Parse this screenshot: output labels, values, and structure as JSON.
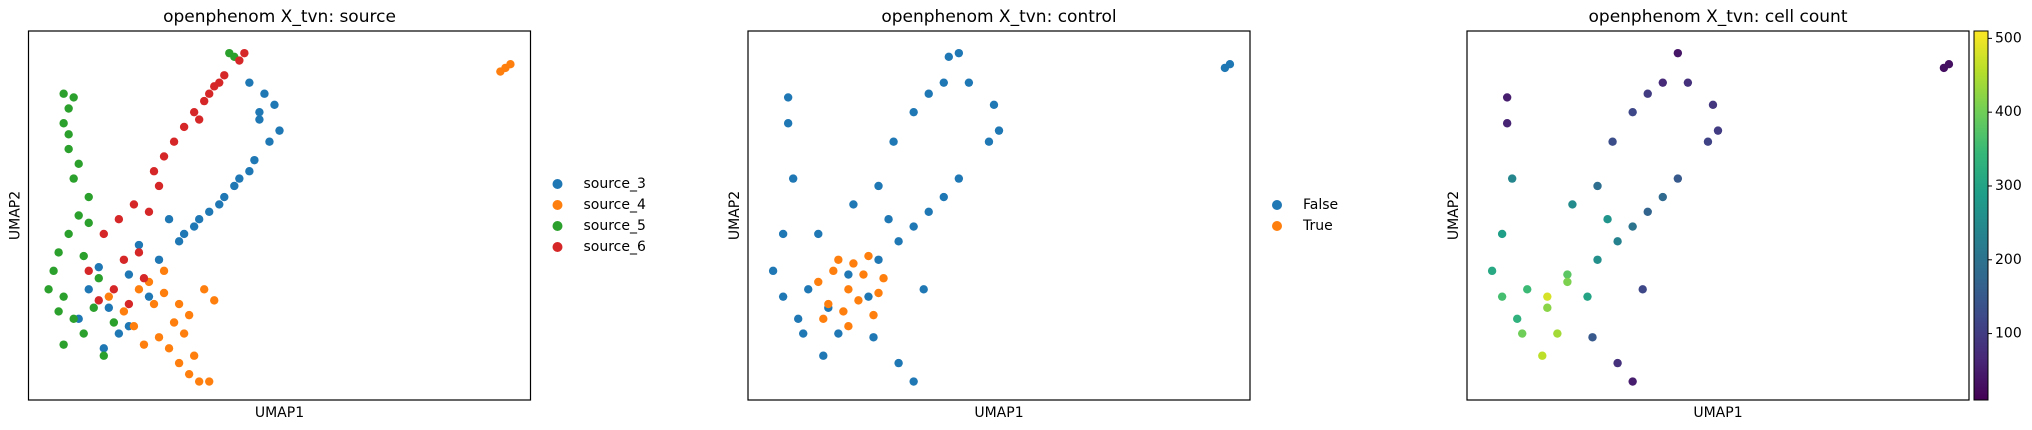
{
  "chart_data": [
    {
      "type": "scatter",
      "title": "openphenom X_tvn: source",
      "xlabel": "UMAP1",
      "ylabel": "UMAP2",
      "xlim": [
        0,
        10
      ],
      "ylim": [
        0,
        10
      ],
      "legend": "right",
      "series": [
        {
          "name": "source_3",
          "color": "#1f77b4",
          "x": [
            1.2,
            1.6,
            2.0,
            2.4,
            1.0,
            1.8,
            2.6,
            2.2,
            1.4,
            3.0,
            3.3,
            3.6,
            3.9,
            4.2,
            4.5,
            4.8,
            4.6,
            4.9,
            5.0,
            4.7,
            4.4,
            4.6,
            2.8,
            2.0,
            1.5,
            3.1,
            3.4,
            3.8,
            4.1,
            4.4
          ],
          "y": [
            3.0,
            2.5,
            3.4,
            2.8,
            2.2,
            1.8,
            3.8,
            4.2,
            3.6,
            4.3,
            4.7,
            5.1,
            5.5,
            6.0,
            6.5,
            7.0,
            7.6,
            8.0,
            7.3,
            8.3,
            8.6,
            7.8,
            4.9,
            2.0,
            1.4,
            4.5,
            4.9,
            5.3,
            5.8,
            6.2
          ]
        },
        {
          "name": "source_4",
          "color": "#ff7f0e",
          "x": [
            2.4,
            2.7,
            3.0,
            3.2,
            2.9,
            3.1,
            2.6,
            2.8,
            3.3,
            3.0,
            2.5,
            2.2,
            1.9,
            2.1,
            3.2,
            3.4,
            3.6,
            3.5,
            3.7,
            9.5,
            9.6,
            9.4,
            1.6,
            2.3,
            2.7
          ],
          "y": [
            3.2,
            2.9,
            2.6,
            2.3,
            2.1,
            1.8,
            1.7,
            1.4,
            1.2,
            1.0,
            2.6,
            3.0,
            2.4,
            2.0,
            0.7,
            0.5,
            0.5,
            3.0,
            2.7,
            9.0,
            9.1,
            8.9,
            2.8,
            1.5,
            3.5
          ]
        },
        {
          "name": "source_5",
          "color": "#2ca02c",
          "x": [
            0.5,
            0.7,
            0.9,
            1.1,
            0.6,
            0.8,
            1.0,
            1.2,
            0.4,
            0.7,
            1.3,
            1.5,
            0.9,
            0.8,
            0.7,
            0.8,
            0.9,
            0.7,
            0.8,
            1.0,
            1.2,
            1.1,
            0.6,
            1.4,
            1.7,
            4.0,
            4.1
          ],
          "y": [
            3.5,
            2.8,
            2.2,
            1.8,
            4.0,
            4.5,
            5.0,
            5.5,
            3.0,
            1.5,
            2.5,
            1.2,
            6.0,
            6.8,
            7.5,
            7.9,
            8.2,
            8.3,
            7.2,
            6.4,
            4.8,
            3.9,
            2.4,
            3.3,
            2.1,
            9.4,
            9.3
          ]
        },
        {
          "name": "source_6",
          "color": "#d62728",
          "x": [
            1.5,
            1.8,
            2.1,
            2.4,
            2.6,
            2.5,
            2.7,
            2.9,
            3.1,
            3.3,
            3.5,
            3.6,
            3.8,
            3.9,
            4.2,
            4.3,
            1.2,
            1.9,
            2.2,
            1.7,
            2.0,
            1.4,
            2.3,
            3.4,
            3.7
          ],
          "y": [
            4.5,
            4.9,
            5.3,
            5.1,
            5.8,
            6.2,
            6.6,
            7.0,
            7.4,
            7.8,
            8.1,
            8.3,
            8.6,
            8.8,
            9.2,
            9.4,
            3.5,
            3.8,
            4.0,
            3.0,
            2.6,
            2.7,
            3.3,
            7.6,
            8.5
          ]
        }
      ]
    },
    {
      "type": "scatter",
      "title": "openphenom X_tvn: control",
      "xlabel": "UMAP1",
      "ylabel": "UMAP2",
      "xlim": [
        0,
        10
      ],
      "ylim": [
        0,
        10
      ],
      "legend": "right",
      "series": [
        {
          "name": "False",
          "color": "#1f77b4",
          "x": [
            1.2,
            1.6,
            2.0,
            2.4,
            1.0,
            1.8,
            2.6,
            3.0,
            3.6,
            4.2,
            4.8,
            4.9,
            5.0,
            4.4,
            3.3,
            3.9,
            2.8,
            0.5,
            0.7,
            0.9,
            0.8,
            0.8,
            0.7,
            1.1,
            1.5,
            2.1,
            2.6,
            2.9,
            3.3,
            3.6,
            3.9,
            4.2,
            2.5,
            3.0,
            3.3,
            3.5,
            9.5,
            9.6,
            4.0,
            1.4
          ],
          "y": [
            3.0,
            2.5,
            3.4,
            2.8,
            2.2,
            1.8,
            3.8,
            4.3,
            5.1,
            6.0,
            7.0,
            8.0,
            7.3,
            8.6,
            4.7,
            5.5,
            4.9,
            3.5,
            2.8,
            6.0,
            7.5,
            8.2,
            4.5,
            1.8,
            1.2,
            5.3,
            5.8,
            7.0,
            7.8,
            8.3,
            8.6,
            9.4,
            1.7,
            1.0,
            0.5,
            3.0,
            9.0,
            9.1,
            9.3,
            4.5
          ]
        },
        {
          "name": "True",
          "color": "#ff7f0e",
          "x": [
            1.4,
            1.7,
            2.0,
            2.3,
            2.6,
            1.6,
            1.9,
            2.2,
            2.5,
            1.8,
            2.1,
            2.4,
            1.5,
            2.0,
            2.7
          ],
          "y": [
            3.2,
            3.5,
            3.0,
            3.4,
            2.9,
            2.6,
            2.4,
            2.7,
            2.3,
            3.8,
            3.7,
            3.9,
            2.2,
            2.0,
            3.3
          ]
        }
      ]
    },
    {
      "type": "scatter",
      "title": "openphenom X_tvn: cell count",
      "xlabel": "UMAP1",
      "ylabel": "UMAP2",
      "xlim": [
        0,
        10
      ],
      "ylim": [
        0,
        10
      ],
      "colormap": "viridis",
      "clim": [
        10,
        510
      ],
      "cticks": [
        100,
        200,
        300,
        400,
        500
      ],
      "series": [
        {
          "x": [
            1.2,
            1.6,
            2.0,
            2.4,
            1.0,
            1.8,
            2.6,
            3.0,
            3.6,
            4.2,
            4.8,
            4.9,
            5.0,
            4.4,
            3.3,
            3.9,
            2.8,
            0.5,
            0.7,
            0.9,
            0.8,
            0.8,
            0.7,
            1.1,
            1.5,
            2.1,
            2.6,
            2.9,
            3.3,
            3.6,
            3.9,
            4.2,
            2.5,
            3.0,
            3.3,
            3.5,
            9.5,
            9.6,
            1.6,
            2.0
          ],
          "y": [
            3.0,
            2.5,
            3.4,
            2.8,
            2.2,
            1.8,
            3.8,
            4.3,
            5.1,
            6.0,
            7.0,
            8.0,
            7.3,
            8.6,
            4.7,
            5.5,
            4.9,
            3.5,
            2.8,
            6.0,
            7.5,
            8.2,
            4.5,
            1.8,
            1.2,
            5.3,
            5.8,
            7.0,
            7.8,
            8.3,
            8.6,
            9.4,
            1.7,
            1.0,
            0.5,
            3.0,
            9.0,
            9.1,
            2.8,
            3.2
          ],
          "c": [
            350,
            420,
            380,
            300,
            330,
            440,
            260,
            230,
            170,
            150,
            110,
            90,
            100,
            80,
            200,
            180,
            270,
            310,
            360,
            240,
            60,
            50,
            290,
            400,
            460,
            250,
            190,
            130,
            120,
            100,
            70,
            40,
            150,
            80,
            50,
            120,
            30,
            30,
            480,
            410
          ]
        }
      ]
    }
  ]
}
